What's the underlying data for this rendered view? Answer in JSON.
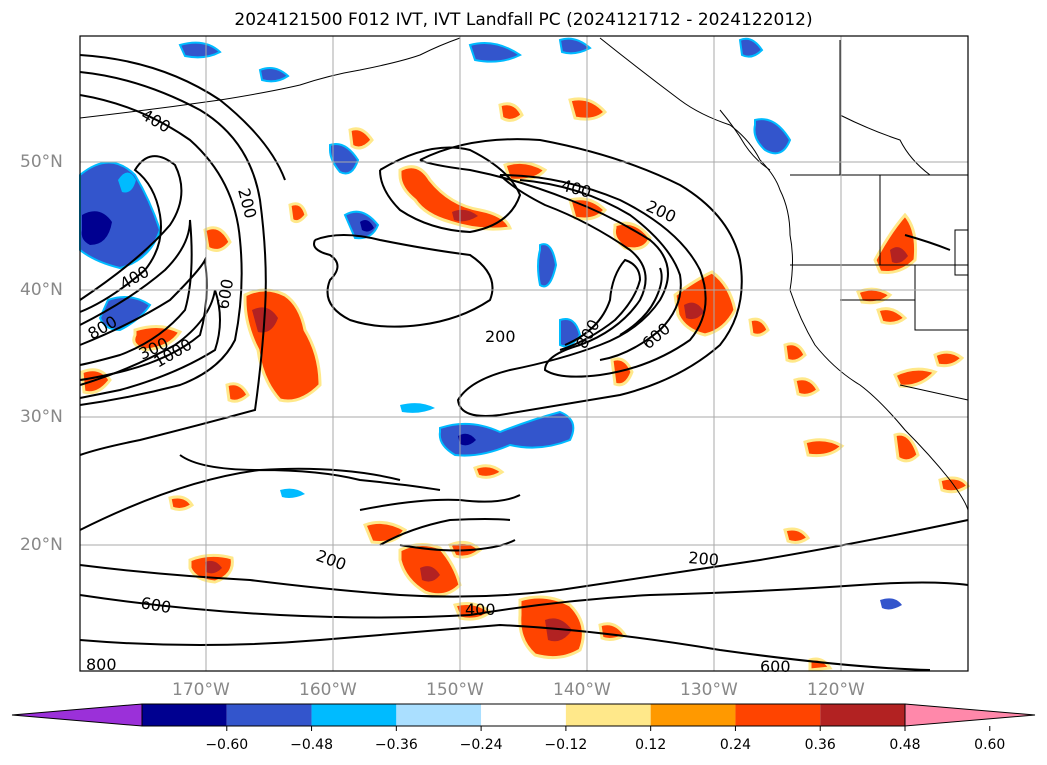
{
  "title": "2024121500 F012 IVT, IVT Landfall PC (2024121712 - 2024122012)",
  "lat_labels": [
    "50°N",
    "40°N",
    "30°N",
    "20°N"
  ],
  "lon_labels": [
    "170°W",
    "160°W",
    "150°W",
    "140°W",
    "130°W",
    "120°W"
  ],
  "contour_labels": [
    "400",
    "200",
    "400",
    "200",
    "600",
    "400",
    "800",
    "300",
    "1000",
    "200",
    "800",
    "600",
    "200",
    "600",
    "400",
    "200",
    "800",
    "600"
  ],
  "colorbar": {
    "tick_labels": [
      "−0.60",
      "−0.48",
      "−0.36",
      "−0.24",
      "−0.12",
      "0.12",
      "0.24",
      "0.36",
      "0.48",
      "0.60"
    ],
    "colors": [
      "#9b30d9",
      "#000090",
      "#3355cc",
      "#00bbff",
      "#aadfff",
      "#ffffff",
      "#ffe88a",
      "#ff9900",
      "#ff4400",
      "#b22222",
      "#ff88aa"
    ]
  }
}
